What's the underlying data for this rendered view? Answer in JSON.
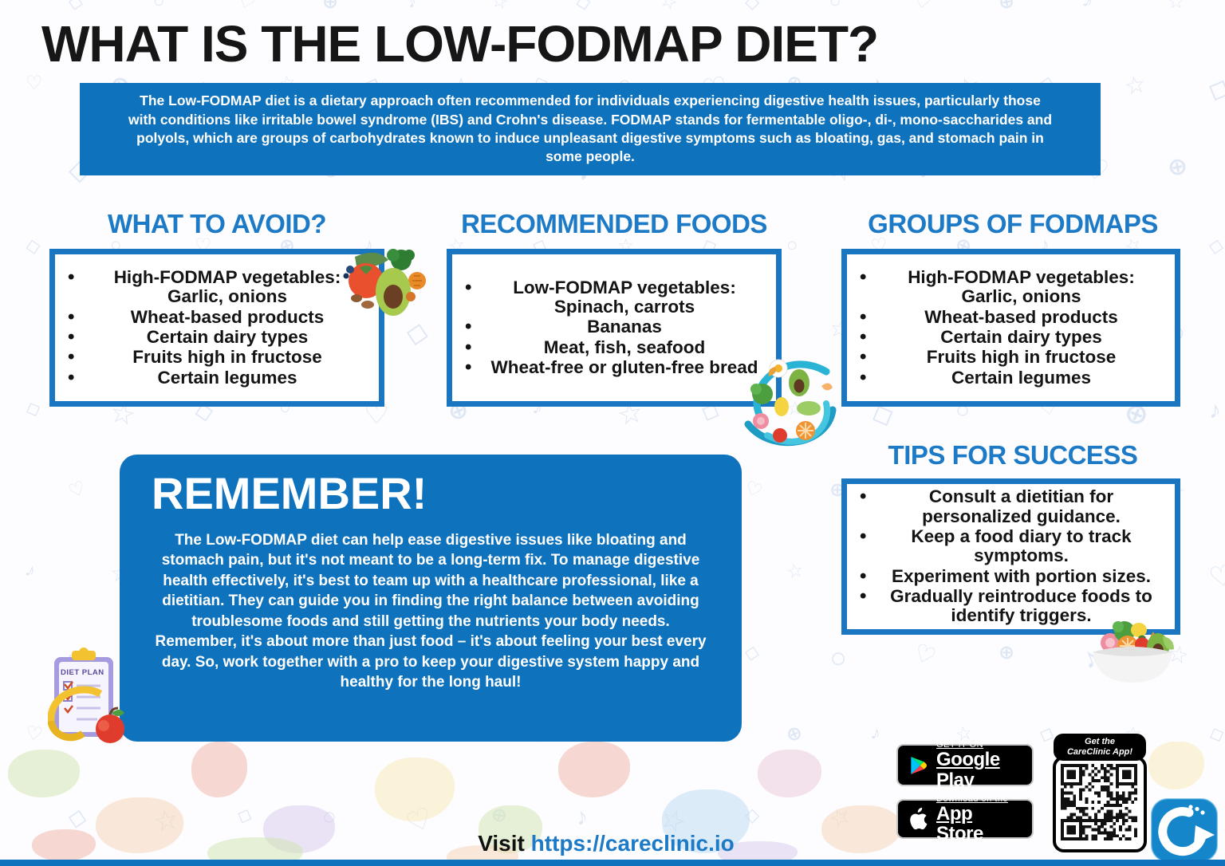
{
  "title": "WHAT IS THE LOW-FODMAP DIET?",
  "intro": "The Low-FODMAP diet is a dietary approach often recommended for individuals experiencing digestive health issues, particularly those with conditions like irritable bowel syndrome (IBS) and Crohn's disease. FODMAP stands for fermentable oligo-, di-, mono-saccharides and polyols, which are groups of carbohydrates known to induce unpleasant digestive symptoms such as bloating, gas, and stomach pain in some people.",
  "sections": {
    "avoid": {
      "heading": "WHAT TO AVOID?",
      "items": [
        "High-FODMAP vegetables: Garlic, onions",
        "Wheat-based products",
        "Certain dairy types",
        "Fruits high in fructose",
        "Certain legumes"
      ]
    },
    "recommended": {
      "heading": "RECOMMENDED FOODS",
      "items": [
        "Low-FODMAP vegetables: Spinach, carrots",
        "Bananas",
        "Meat, fish, seafood",
        "Wheat-free or gluten-free bread"
      ]
    },
    "groups": {
      "heading": "GROUPS OF FODMAPS",
      "items": [
        "High-FODMAP vegetables: Garlic, onions",
        "Wheat-based products",
        "Certain dairy types",
        "Fruits high in fructose",
        "Certain legumes"
      ]
    },
    "tips": {
      "heading": "TIPS FOR SUCCESS",
      "items": [
        "Consult a dietitian for personalized guidance.",
        "Keep a food diary to track symptoms.",
        "Experiment with portion sizes.",
        "Gradually reintroduce foods to identify triggers."
      ]
    }
  },
  "remember": {
    "heading": "REMEMBER!",
    "body": "The Low-FODMAP diet can help ease digestive issues like bloating and stomach pain, but it's not meant to be a long-term fix. To manage digestive health effectively, it's best to team up with a healthcare professional, like a dietitian. They can guide you in finding the right balance between avoiding troublesome foods and still getting the nutrients your body needs. Remember, it's about more than just food – it's about feeling your best every day. So, work together with a pro to keep your digestive system happy and healthy for the long haul!"
  },
  "footer": {
    "google_play_line1": "GET IT ON",
    "google_play_line2": "Google Play",
    "app_store_line1": "Download on the",
    "app_store_line2": "App Store",
    "qr_label_line1": "Get the",
    "qr_label_line2": "CareClinic App!",
    "visit_prefix": "Visit",
    "visit_url": "https://careclinic.io"
  },
  "illustrations": {
    "clipboard_label": "DIET PLAN"
  },
  "colors": {
    "primary_blue": "#0f72bd",
    "heading_blue": "#1c7ac6",
    "box_border_blue": "#1b76c2",
    "title_black": "#161616",
    "tape_teal": "#29b3d4"
  }
}
